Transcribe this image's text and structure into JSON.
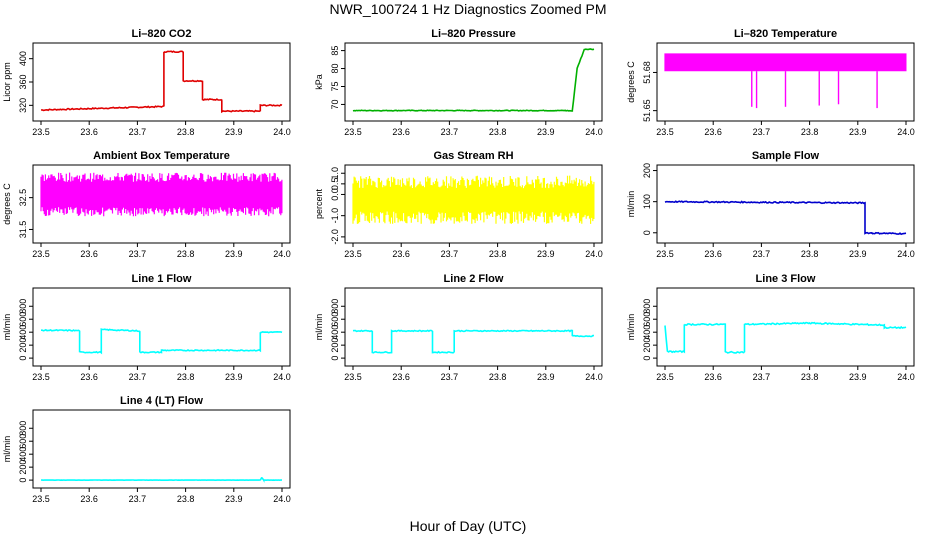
{
  "title": "NWR_100724  1 Hz Diagnostics Zoomed PM",
  "xlabel": "Hour of Day (UTC)",
  "chart_data": [
    {
      "type": "line",
      "title": "Li–820 CO2",
      "ylabel": "Licor ppm",
      "color": "#e00000",
      "xticks": [
        "23.5",
        "23.6",
        "23.7",
        "23.8",
        "23.9",
        "24.0"
      ],
      "xlim": [
        23.5,
        24.0
      ],
      "yticks": [
        "320",
        "360",
        "400"
      ],
      "ylim": [
        300,
        420
      ],
      "noise": 1,
      "series": [
        {
          "x": [
            23.5,
            23.755,
            23.755,
            23.795,
            23.795,
            23.835,
            23.835,
            23.875,
            23.875,
            23.955,
            23.955,
            24.0
          ],
          "values": [
            312,
            318,
            412,
            412,
            362,
            362,
            330,
            330,
            310,
            310,
            320,
            320
          ]
        }
      ]
    },
    {
      "type": "line",
      "title": "Li–820 Pressure",
      "ylabel": "kPa",
      "color": "#00b000",
      "xticks": [
        "23.5",
        "23.6",
        "23.7",
        "23.8",
        "23.9",
        "24.0"
      ],
      "xlim": [
        23.5,
        24.0
      ],
      "yticks": [
        "70",
        "75",
        "80",
        "85"
      ],
      "ylim": [
        66.5,
        86
      ],
      "noise": 0.1,
      "series": [
        {
          "x": [
            23.5,
            23.94,
            23.955,
            23.965,
            23.98,
            24.0
          ],
          "values": [
            68.3,
            68.3,
            68.2,
            80,
            85.4,
            85.4
          ]
        }
      ]
    },
    {
      "type": "band",
      "title": "Li–820 Temperature",
      "ylabel": "degrees C",
      "color": "#ff00ff",
      "xticks": [
        "23.5",
        "23.6",
        "23.7",
        "23.8",
        "23.9",
        "24.0"
      ],
      "xlim": [
        23.5,
        24.0
      ],
      "yticks": [
        "51.65",
        "51.68"
      ],
      "ylim": [
        51.645,
        51.7
      ],
      "band": [
        51.681,
        51.695
      ],
      "spikes": [
        [
          23.68,
          51.653
        ],
        [
          23.69,
          51.652
        ],
        [
          23.75,
          51.653
        ],
        [
          23.82,
          51.654
        ],
        [
          23.86,
          51.655
        ],
        [
          23.94,
          51.652
        ]
      ]
    },
    {
      "type": "band",
      "title": "Ambient Box Temperature",
      "ylabel": "degrees C",
      "color": "#ff00ff",
      "xticks": [
        "23.5",
        "23.6",
        "23.7",
        "23.8",
        "23.9",
        "24.0"
      ],
      "xlim": [
        23.5,
        24.0
      ],
      "yticks": [
        "31.5",
        "32.5"
      ],
      "ylim": [
        31.2,
        33.4
      ],
      "band": [
        32.2,
        33.0
      ],
      "jitter": 0.6
    },
    {
      "type": "band",
      "title": "Gas Stream RH",
      "ylabel": "percent",
      "color": "#ffff00",
      "xticks": [
        "23.5",
        "23.6",
        "23.7",
        "23.8",
        "23.9",
        "24.0"
      ],
      "xlim": [
        23.5,
        24.0
      ],
      "yticks": [
        "-2.0",
        "-1.0",
        "0.0",
        "0.5",
        "1.0"
      ],
      "ylim": [
        -2.1,
        1.2
      ],
      "band": [
        -0.8,
        0.3
      ],
      "jitter": 0.9
    },
    {
      "type": "line",
      "title": "Sample Flow",
      "ylabel": "ml/min",
      "color": "#0000cc",
      "xticks": [
        "23.5",
        "23.6",
        "23.7",
        "23.8",
        "23.9",
        "24.0"
      ],
      "xlim": [
        23.5,
        24.0
      ],
      "yticks": [
        "0",
        "100",
        "200"
      ],
      "ylim": [
        -20,
        205
      ],
      "noise": 2,
      "series": [
        {
          "x": [
            23.5,
            23.915,
            23.915,
            23.93,
            24.0
          ],
          "values": [
            100,
            96,
            0,
            -1,
            -3
          ]
        }
      ]
    },
    {
      "type": "line",
      "title": "Line 1 Flow",
      "ylabel": "ml/min",
      "color": "#00ffff",
      "xticks": [
        "23.5",
        "23.6",
        "23.7",
        "23.8",
        "23.9",
        "24.0"
      ],
      "xlim": [
        23.5,
        24.0
      ],
      "yticks": [
        "0",
        "200",
        "400",
        "600",
        "800"
      ],
      "ylim": [
        -60,
        1020
      ],
      "noise": 8,
      "series": [
        {
          "x": [
            23.5,
            23.58,
            23.58,
            23.625,
            23.625,
            23.705,
            23.705,
            23.75,
            23.75,
            23.955,
            23.955,
            24.0
          ],
          "values": [
            430,
            425,
            90,
            90,
            440,
            420,
            90,
            90,
            120,
            120,
            400,
            400
          ]
        }
      ]
    },
    {
      "type": "line",
      "title": "Line 2 Flow",
      "ylabel": "ml/min",
      "color": "#00ffff",
      "xticks": [
        "23.5",
        "23.6",
        "23.7",
        "23.8",
        "23.9",
        "24.0"
      ],
      "xlim": [
        23.5,
        24.0
      ],
      "yticks": [
        "0",
        "200",
        "400",
        "600",
        "800"
      ],
      "ylim": [
        -60,
        1020
      ],
      "noise": 8,
      "series": [
        {
          "x": [
            23.5,
            23.54,
            23.54,
            23.58,
            23.58,
            23.665,
            23.665,
            23.71,
            23.71,
            23.955,
            23.955,
            24.0
          ],
          "values": [
            420,
            420,
            90,
            90,
            420,
            420,
            90,
            90,
            420,
            420,
            340,
            340
          ]
        }
      ]
    },
    {
      "type": "line",
      "title": "Line 3 Flow",
      "ylabel": "ml/min",
      "color": "#00ffff",
      "xticks": [
        "23.5",
        "23.6",
        "23.7",
        "23.8",
        "23.9",
        "24.0"
      ],
      "xlim": [
        23.5,
        24.0
      ],
      "yticks": [
        "0",
        "200",
        "400",
        "600",
        "800"
      ],
      "ylim": [
        -60,
        1020
      ],
      "noise": 10,
      "series": [
        {
          "x": [
            23.5,
            23.505,
            23.505,
            23.54,
            23.54,
            23.625,
            23.625,
            23.665,
            23.665,
            23.8,
            23.955,
            23.955,
            24.0
          ],
          "values": [
            510,
            100,
            100,
            100,
            520,
            520,
            90,
            90,
            520,
            540,
            510,
            470,
            470
          ]
        }
      ]
    },
    {
      "type": "line",
      "title": "Line 4 (LT) Flow",
      "ylabel": "ml/min",
      "color": "#00ffff",
      "xticks": [
        "23.5",
        "23.6",
        "23.7",
        "23.8",
        "23.9",
        "24.0"
      ],
      "xlim": [
        23.5,
        24.0
      ],
      "yticks": [
        "0",
        "200",
        "400",
        "600",
        "800"
      ],
      "ylim": [
        -60,
        1020
      ],
      "noise": 2,
      "series": [
        {
          "x": [
            23.5,
            23.955,
            23.958,
            23.962,
            24.0
          ],
          "values": [
            0,
            0,
            40,
            0,
            0
          ]
        }
      ]
    }
  ]
}
